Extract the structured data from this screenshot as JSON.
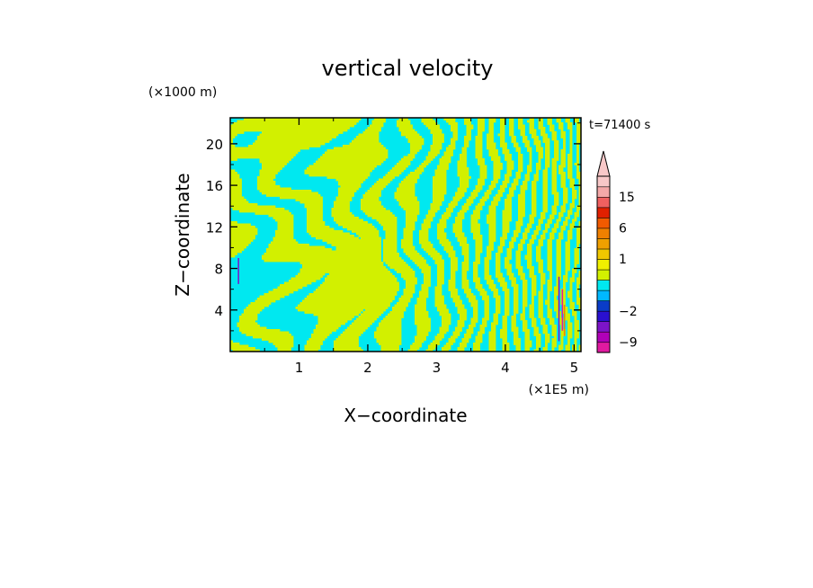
{
  "chart_data": {
    "type": "heatmap",
    "title": "vertical velocity",
    "xlabel": "X−coordinate",
    "ylabel": "Z−coordinate",
    "x_unit": "(×1E5 m)",
    "y_unit": "(×1000 m)",
    "time_label": "t=71400 s",
    "xlim": [
      0,
      5.1
    ],
    "ylim": [
      0,
      22.5
    ],
    "x_ticks": [
      1,
      2,
      3,
      4,
      5
    ],
    "y_ticks": [
      4,
      8,
      12,
      16,
      20
    ],
    "x_tick_labels": [
      "1",
      "2",
      "3",
      "4",
      "5"
    ],
    "y_tick_labels": [
      "4",
      "8",
      "12",
      "16",
      "20"
    ],
    "colorbar": {
      "levels": [
        -12,
        -9,
        -6,
        -4,
        -2,
        -1,
        -0.5,
        0,
        0.5,
        1,
        2,
        4,
        6,
        9,
        12,
        15,
        18,
        25
      ],
      "colors": [
        "#e01aa0",
        "#b000b8",
        "#7c14c8",
        "#2a10d0",
        "#0a3cc8",
        "#00b8ff",
        "#00e8f0",
        "#d2f000",
        "#f0f000",
        "#f0c800",
        "#f0a000",
        "#f08000",
        "#f05a00",
        "#e02000",
        "#f06060",
        "#f4a8a8",
        "#f8c8c8"
      ],
      "extend": "max",
      "tick_labels": [
        "15",
        "6",
        "1",
        "−2",
        "−9"
      ],
      "tick_values": [
        15,
        6,
        1,
        -2,
        -9
      ]
    },
    "dominant_colors": {
      "positive": "#d2f000",
      "negative": "#00e8f0"
    },
    "grid": false,
    "legend": "colorbar-right"
  }
}
